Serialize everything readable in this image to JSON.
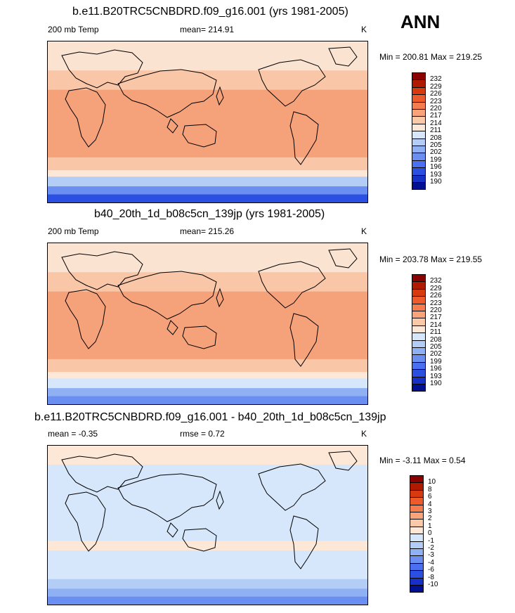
{
  "season": "ANN",
  "panels": [
    {
      "id": "case",
      "title": "b.e11.B20TRC5CNBDRD.f09_g16.001 (yrs 1981-2005)",
      "left_label": "200 mb Temp",
      "center_label": "mean= 214.91",
      "units": "K",
      "range_text": "Min = 200.81 Max = 219.25",
      "colorbar": {
        "labels": [
          "232",
          "229",
          "226",
          "223",
          "220",
          "217",
          "214",
          "211",
          "208",
          "205",
          "202",
          "199",
          "196",
          "193",
          "190"
        ],
        "colors": [
          "#8b0000",
          "#b01a00",
          "#d83a10",
          "#ee5a2a",
          "#f57c4e",
          "#f9a37a",
          "#fbc8a8",
          "#fde8d8",
          "#d6e6fb",
          "#b4cdf7",
          "#8fb0f2",
          "#6b8ff0",
          "#4a6ff0",
          "#2b4fe0",
          "#1730c8",
          "#001090"
        ]
      },
      "map_colors": {
        "polar_n": "#fbe3d2",
        "mid": "#f9c6a8",
        "tropic": "#f5a27a",
        "high_s": "#fde8d8",
        "ant1": "#b4cdf7",
        "ant2": "#6b8ff0",
        "ant3": "#2b4fe0"
      }
    },
    {
      "id": "control",
      "title": "b40_20th_1d_b08c5cn_139jp (yrs 1981-2005)",
      "left_label": "200 mb Temp",
      "center_label": "mean= 215.26",
      "units": "K",
      "range_text": "Min = 203.78 Max = 219.55",
      "colorbar": {
        "labels": [
          "232",
          "229",
          "226",
          "223",
          "220",
          "217",
          "214",
          "211",
          "208",
          "205",
          "202",
          "199",
          "196",
          "193",
          "190"
        ],
        "colors": [
          "#8b0000",
          "#b01a00",
          "#d83a10",
          "#ee5a2a",
          "#f57c4e",
          "#f9a37a",
          "#fbc8a8",
          "#fde8d8",
          "#d6e6fb",
          "#b4cdf7",
          "#8fb0f2",
          "#6b8ff0",
          "#4a6ff0",
          "#2b4fe0",
          "#1730c8",
          "#001090"
        ]
      },
      "map_colors": {
        "polar_n": "#fbe3d2",
        "mid": "#f9c6a8",
        "tropic": "#f5a27a",
        "high_s": "#fde8d8",
        "ant1": "#d6e6fb",
        "ant2": "#8fb0f2",
        "ant3": "#6b8ff0"
      }
    },
    {
      "id": "difference",
      "title": "b.e11.B20TRC5CNBDRD.f09_g16.001 - b40_20th_1d_b08c5cn_139jp",
      "left_label": "mean =  -0.35",
      "center_label": "rmse =   0.72",
      "units": "K",
      "range_text": "Min =  -3.11 Max =   0.54",
      "colorbar": {
        "labels": [
          "10",
          "8",
          "6",
          "4",
          "3",
          "2",
          "1",
          "0",
          "-1",
          "-2",
          "-3",
          "-4",
          "-6",
          "-8",
          "-10"
        ],
        "colors": [
          "#8b0000",
          "#b01a00",
          "#d83a10",
          "#ee5a2a",
          "#f57c4e",
          "#f9a37a",
          "#fbc8a8",
          "#fde8d8",
          "#d6e6fb",
          "#b4cdf7",
          "#8fb0f2",
          "#6b8ff0",
          "#4a6ff0",
          "#2b4fe0",
          "#1730c8",
          "#001090"
        ]
      },
      "map_colors": {
        "polar_n": "#fde8d8",
        "mid": "#d6e6fb",
        "tropic": "#d6e6fb",
        "high_s": "#d6e6fb",
        "ant1": "#b4cdf7",
        "ant2": "#8fb0f2",
        "ant3": "#6b8ff0"
      }
    }
  ]
}
